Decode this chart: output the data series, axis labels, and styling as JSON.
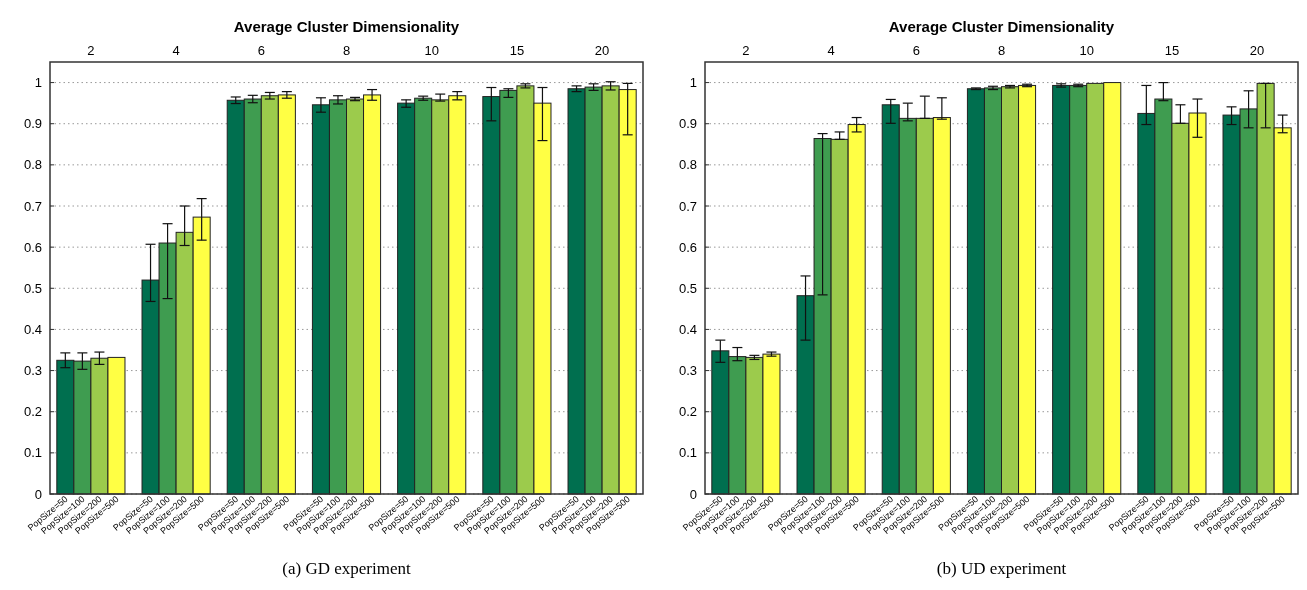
{
  "chart_data": [
    {
      "type": "bar",
      "xlabel": "Average Cluster Dimensionality",
      "categories": [
        "2",
        "4",
        "6",
        "8",
        "10",
        "15",
        "20"
      ],
      "ylim": [
        0,
        1.05
      ],
      "yticks": [
        0,
        0.1,
        0.2,
        0.3,
        0.4,
        0.5,
        0.6,
        0.7,
        0.8,
        0.9,
        1
      ],
      "grid": "y",
      "annotations": [
        "(a)  GD experiment"
      ],
      "series": [
        {
          "name": "PopSize=50",
          "color": "#006f4f",
          "values": [
            0.325,
            0.52,
            0.957,
            0.946,
            0.95,
            0.966,
            0.985
          ],
          "errors": [
            0.018,
            [
              0.468,
              0.607
            ],
            0.008,
            [
              0.928,
              0.963
            ],
            [
              0.94,
              0.958
            ],
            [
              0.907,
              0.988
            ],
            0.007
          ]
        },
        {
          "name": "PopSize=100",
          "color": "#3f9c50",
          "values": [
            0.323,
            0.61,
            0.96,
            0.958,
            0.962,
            0.981,
            0.989
          ],
          "errors": [
            0.02,
            [
              0.475,
              0.657
            ],
            0.009,
            0.01,
            0.005,
            [
              0.964,
              0.985
            ],
            0.008
          ]
        },
        {
          "name": "PopSize=200",
          "color": "#9ccb4c",
          "values": [
            0.33,
            0.636,
            0.968,
            0.96,
            0.958,
            0.992,
            0.992
          ],
          "errors": [
            0.015,
            [
              0.604,
              0.7
            ],
            0.008,
            0.004,
            [
              0.955,
              0.972
            ],
            0.005,
            0.01
          ]
        },
        {
          "name": "PopSize=500",
          "color": "#ffff44",
          "values": [
            0.332,
            0.673,
            0.97,
            0.97,
            0.968,
            0.95,
            0.983
          ],
          "errors": [
            null,
            [
              0.617,
              0.718
            ],
            0.008,
            0.013,
            0.01,
            [
              0.859,
              0.988
            ],
            [
              0.873,
              0.998
            ]
          ]
        }
      ]
    },
    {
      "type": "bar",
      "xlabel": "Average Cluster Dimensionality",
      "categories": [
        "2",
        "4",
        "6",
        "8",
        "10",
        "15",
        "20"
      ],
      "ylim": [
        0,
        1.05
      ],
      "yticks": [
        0,
        0.1,
        0.2,
        0.3,
        0.4,
        0.5,
        0.6,
        0.7,
        0.8,
        0.9,
        1
      ],
      "grid": "y",
      "annotations": [
        "(b)  UD experiment"
      ],
      "series": [
        {
          "name": "PopSize=50",
          "color": "#006f4f",
          "values": [
            0.348,
            0.482,
            0.946,
            0.985,
            0.993,
            0.925,
            0.921
          ],
          "errors": [
            [
              0.32,
              0.374
            ],
            [
              0.374,
              0.53
            ],
            [
              0.901,
              0.959
            ],
            0.002,
            0.004,
            [
              0.898,
              0.993
            ],
            [
              0.898,
              0.941
            ]
          ]
        },
        {
          "name": "PopSize=100",
          "color": "#3f9c50",
          "values": [
            0.334,
            0.864,
            0.913,
            0.987,
            0.993,
            0.96,
            0.936
          ],
          "errors": [
            [
              0.324,
              0.356
            ],
            [
              0.484,
              0.876
            ],
            [
              0.907,
              0.95
            ],
            0.004,
            0.003,
            [
              0.956,
              1.0
            ],
            [
              0.89,
              0.98
            ]
          ]
        },
        {
          "name": "PopSize=200",
          "color": "#9ccb4c",
          "values": [
            0.332,
            0.862,
            0.913,
            0.99,
            0.998,
            0.901,
            0.998
          ],
          "errors": [
            0.005,
            [
              0.862,
              0.88
            ],
            [
              0.913,
              0.967
            ],
            0.003,
            null,
            [
              0.901,
              0.946
            ],
            [
              0.89,
              0.998
            ]
          ]
        },
        {
          "name": "PopSize=500",
          "color": "#ffff44",
          "values": [
            0.34,
            0.898,
            0.915,
            0.993,
            1.0,
            0.926,
            0.89
          ],
          "errors": [
            0.005,
            [
              0.88,
              0.915
            ],
            [
              0.911,
              0.963
            ],
            0.003,
            null,
            [
              0.867,
              0.96
            ],
            [
              0.878,
              0.921
            ]
          ]
        }
      ]
    }
  ]
}
